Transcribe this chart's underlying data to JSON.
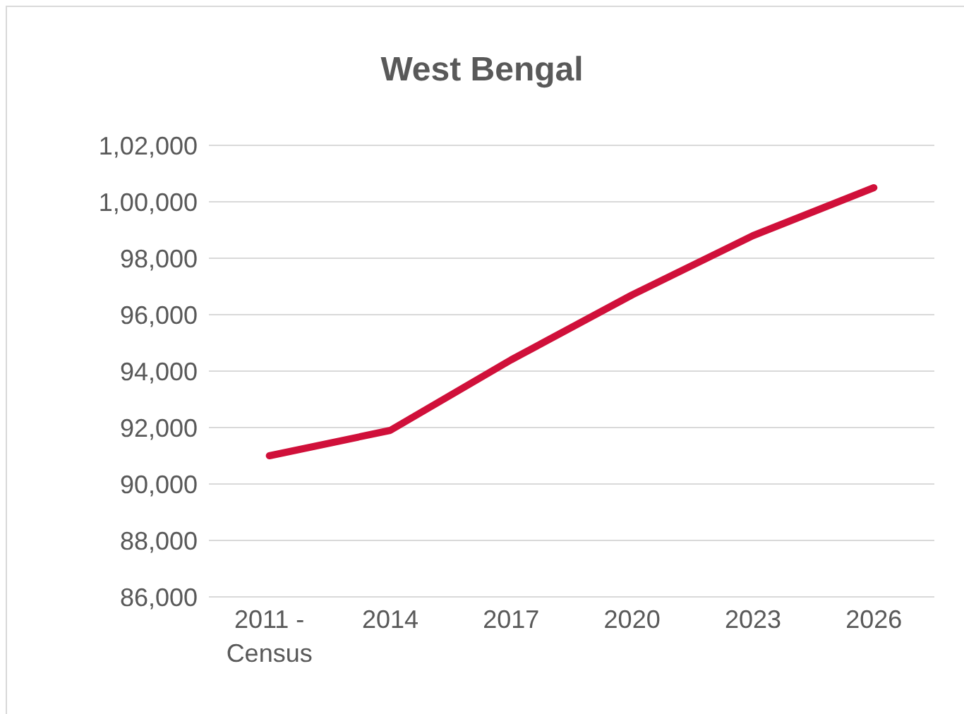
{
  "chart_data": {
    "type": "line",
    "title": "West Bengal",
    "categories": [
      "2011 - Census",
      "2014",
      "2017",
      "2020",
      "2023",
      "2026"
    ],
    "series": [
      {
        "color": "#d0103a",
        "values": [
          91000,
          91900,
          94400,
          96700,
          98800,
          100500
        ]
      }
    ],
    "ylim": [
      86000,
      102000
    ],
    "yticks": [
      {
        "value": 86000,
        "label": "86,000"
      },
      {
        "value": 88000,
        "label": "88,000"
      },
      {
        "value": 90000,
        "label": "90,000"
      },
      {
        "value": 92000,
        "label": "92,000"
      },
      {
        "value": 94000,
        "label": "94,000"
      },
      {
        "value": 96000,
        "label": "96,000"
      },
      {
        "value": 98000,
        "label": "98,000"
      },
      {
        "value": 100000,
        "label": "1,00,000"
      },
      {
        "value": 102000,
        "label": "1,02,000"
      }
    ],
    "grid": "y",
    "legend": false,
    "marker": "none",
    "line_style": "solid"
  }
}
